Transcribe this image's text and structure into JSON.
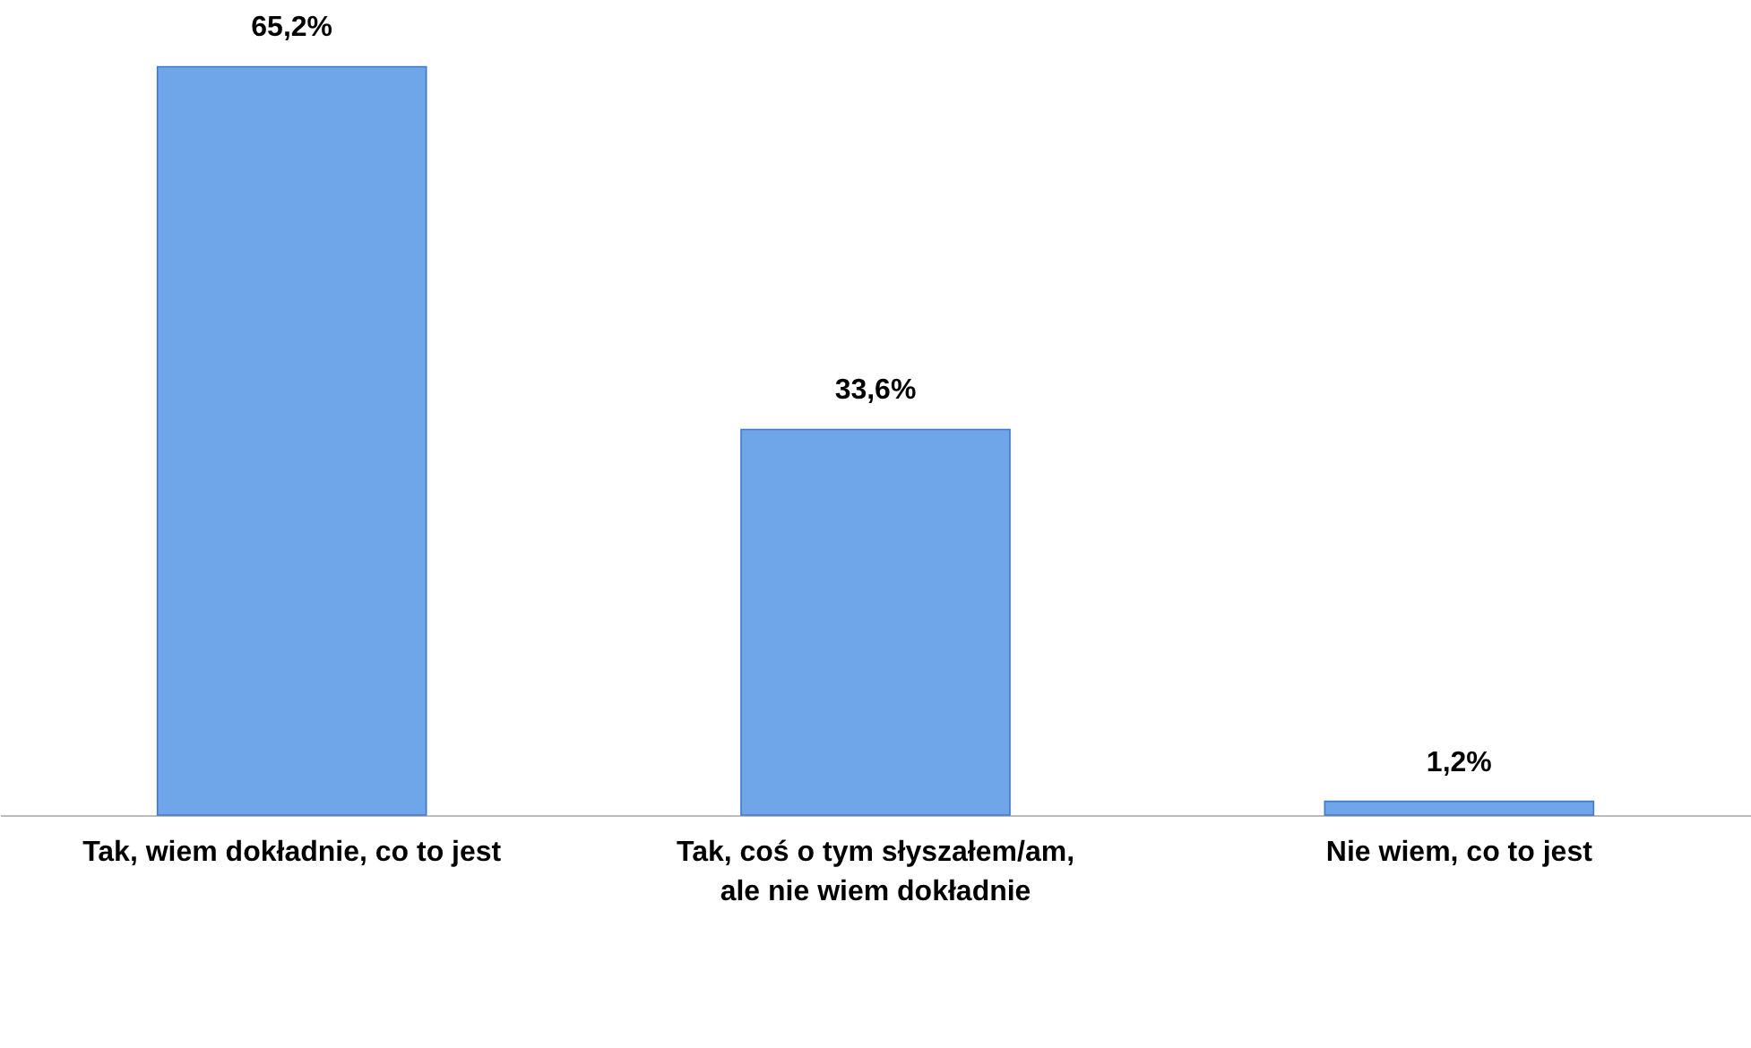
{
  "chart_data": {
    "type": "bar",
    "categories": [
      "Tak, wiem dokładnie, co to jest",
      "Tak, coś o tym słyszałem/am, ale nie wiem dokładnie",
      "Nie wiem, co to jest"
    ],
    "values": [
      65.2,
      33.6,
      1.2
    ],
    "color": "#6fa6ea",
    "value_labels": [
      "65,2%",
      "33,6%",
      "1,2%"
    ]
  }
}
